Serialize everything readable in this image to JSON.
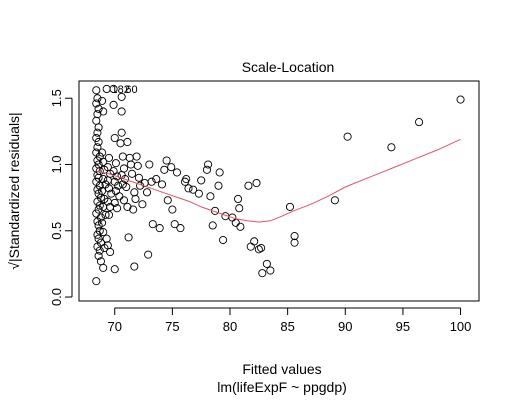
{
  "chart_data": {
    "type": "scatter",
    "title": "Scale-Location",
    "xlabel": "Fitted values",
    "subtitle": "lm(lifeExpF ~ ppgdp)",
    "ylabel": "√|Standardized residuals|",
    "xlim": [
      66.9,
      101.6
    ],
    "ylim": [
      -0.03,
      1.63
    ],
    "xticks": [
      70,
      75,
      80,
      85,
      90,
      95,
      100
    ],
    "yticks": [
      0.0,
      0.5,
      1.0,
      1.5
    ],
    "xtick_labels": [
      "70",
      "75",
      "80",
      "85",
      "90",
      "95",
      "100"
    ],
    "ytick_labels": [
      "0.0",
      "0.5",
      "1.0",
      "1.5"
    ],
    "grid": false,
    "legend": "none",
    "series": [
      {
        "kind": "points",
        "color": "#000000",
        "points": [
          [
            68.4,
            1.56
          ],
          [
            68.5,
            1.5
          ],
          [
            68.4,
            1.46
          ],
          [
            68.6,
            1.42
          ],
          [
            68.5,
            1.38
          ],
          [
            68.4,
            1.33
          ],
          [
            68.6,
            1.28
          ],
          [
            68.5,
            1.24
          ],
          [
            68.4,
            1.2
          ],
          [
            68.6,
            1.17
          ],
          [
            68.5,
            1.13
          ],
          [
            68.4,
            1.09
          ],
          [
            68.7,
            1.06
          ],
          [
            68.5,
            1.03
          ],
          [
            68.6,
            1.0
          ],
          [
            68.4,
            0.97
          ],
          [
            68.7,
            0.95
          ],
          [
            68.5,
            0.92
          ],
          [
            68.6,
            0.9
          ],
          [
            68.4,
            0.87
          ],
          [
            68.7,
            0.84
          ],
          [
            68.5,
            0.81
          ],
          [
            68.6,
            0.78
          ],
          [
            68.8,
            0.75
          ],
          [
            68.5,
            0.72
          ],
          [
            68.7,
            0.69
          ],
          [
            68.6,
            0.66
          ],
          [
            68.4,
            0.63
          ],
          [
            68.8,
            0.6
          ],
          [
            68.5,
            0.57
          ],
          [
            68.6,
            0.54
          ],
          [
            68.7,
            0.5
          ],
          [
            68.5,
            0.47
          ],
          [
            68.6,
            0.44
          ],
          [
            68.8,
            0.41
          ],
          [
            68.5,
            0.38
          ],
          [
            68.7,
            0.35
          ],
          [
            68.6,
            0.31
          ],
          [
            68.8,
            0.27
          ],
          [
            68.4,
            0.12
          ],
          [
            68.9,
            1.48
          ],
          [
            69.0,
            1.4
          ],
          [
            68.9,
            1.09
          ],
          [
            69.0,
            1.02
          ],
          [
            69.1,
            0.96
          ],
          [
            69.0,
            0.89
          ],
          [
            69.2,
            0.85
          ],
          [
            68.9,
            0.8
          ],
          [
            69.1,
            0.74
          ],
          [
            69.0,
            0.68
          ],
          [
            69.2,
            0.62
          ],
          [
            68.9,
            0.56
          ],
          [
            69.0,
            0.49
          ],
          [
            69.3,
            0.44
          ],
          [
            69.1,
            0.37
          ],
          [
            69.0,
            0.22
          ],
          [
            69.3,
            1.57
          ],
          [
            69.5,
            1.05
          ],
          [
            69.4,
            0.98
          ],
          [
            69.6,
            0.93
          ],
          [
            69.4,
            0.88
          ],
          [
            69.5,
            0.82
          ],
          [
            69.7,
            0.78
          ],
          [
            69.4,
            0.72
          ],
          [
            69.6,
            0.68
          ],
          [
            69.5,
            0.62
          ],
          [
            69.4,
            0.39
          ],
          [
            69.6,
            0.34
          ],
          [
            69.9,
            1.57
          ],
          [
            69.9,
            1.45
          ],
          [
            70.0,
            1.2
          ],
          [
            70.1,
            1.01
          ],
          [
            69.9,
            0.95
          ],
          [
            70.2,
            0.91
          ],
          [
            70.0,
            0.87
          ],
          [
            70.3,
            0.84
          ],
          [
            70.1,
            0.8
          ],
          [
            70.4,
            0.76
          ],
          [
            70.0,
            0.71
          ],
          [
            70.2,
            0.67
          ],
          [
            70.0,
            0.21
          ],
          [
            70.6,
            1.51
          ],
          [
            70.6,
            1.4
          ],
          [
            70.6,
            1.24
          ],
          [
            70.5,
            1.16
          ],
          [
            70.7,
            1.06
          ],
          [
            70.8,
            0.97
          ],
          [
            70.6,
            0.92
          ],
          [
            70.9,
            0.89
          ],
          [
            70.7,
            0.85
          ],
          [
            71.0,
            0.83
          ],
          [
            70.8,
            0.73
          ],
          [
            71.1,
            0.68
          ],
          [
            71.1,
            1.17
          ],
          [
            71.3,
            1.05
          ],
          [
            71.4,
            1.0
          ],
          [
            71.2,
            0.45
          ],
          [
            71.5,
            0.93
          ],
          [
            71.7,
            0.79
          ],
          [
            71.8,
            0.74
          ],
          [
            71.6,
            0.66
          ],
          [
            71.7,
            0.23
          ],
          [
            71.9,
            1.06
          ],
          [
            72.0,
            0.99
          ],
          [
            72.1,
            0.9
          ],
          [
            72.2,
            0.84
          ],
          [
            72.4,
            0.7
          ],
          [
            72.6,
            0.86
          ],
          [
            72.8,
            0.79
          ],
          [
            72.9,
            0.32
          ],
          [
            73.0,
            1.0
          ],
          [
            73.2,
            0.87
          ],
          [
            73.3,
            0.55
          ],
          [
            73.6,
            0.89
          ],
          [
            73.9,
            0.52
          ],
          [
            74.1,
            0.85
          ],
          [
            74.3,
            0.96
          ],
          [
            74.5,
            1.03
          ],
          [
            74.6,
            0.73
          ],
          [
            74.9,
            0.98
          ],
          [
            75.0,
            0.66
          ],
          [
            75.2,
            0.55
          ],
          [
            75.4,
            0.94
          ],
          [
            75.7,
            0.52
          ],
          [
            76.1,
            0.87
          ],
          [
            76.2,
            0.89
          ],
          [
            76.4,
            0.82
          ],
          [
            76.8,
            0.81
          ],
          [
            77.3,
            0.78
          ],
          [
            77.5,
            0.88
          ],
          [
            78.0,
            0.96
          ],
          [
            78.1,
            1.0
          ],
          [
            78.3,
            0.76
          ],
          [
            78.5,
            0.54
          ],
          [
            78.7,
            0.65
          ],
          [
            79.0,
            0.84
          ],
          [
            79.1,
            0.94
          ],
          [
            79.4,
            0.43
          ],
          [
            79.6,
            0.61
          ],
          [
            80.2,
            0.6
          ],
          [
            80.5,
            0.56
          ],
          [
            80.7,
            0.74
          ],
          [
            80.8,
            0.67
          ],
          [
            80.9,
            0.53
          ],
          [
            81.6,
            0.84
          ],
          [
            81.8,
            0.38
          ],
          [
            82.1,
            0.42
          ],
          [
            82.3,
            0.86
          ],
          [
            82.5,
            0.36
          ],
          [
            82.7,
            0.37
          ],
          [
            82.8,
            0.18
          ],
          [
            83.2,
            0.25
          ],
          [
            83.5,
            0.2
          ],
          [
            85.2,
            0.68
          ],
          [
            85.6,
            0.41
          ],
          [
            85.6,
            0.46
          ],
          [
            89.1,
            0.73
          ],
          [
            90.2,
            1.21
          ],
          [
            94.0,
            1.13
          ],
          [
            96.4,
            1.32
          ],
          [
            100.0,
            1.49
          ]
        ]
      },
      {
        "kind": "smooth",
        "color": "#DF536B",
        "points": [
          [
            68.4,
            0.95
          ],
          [
            69.5,
            0.93
          ],
          [
            70.5,
            0.9
          ],
          [
            71.5,
            0.87
          ],
          [
            72.5,
            0.84
          ],
          [
            73.5,
            0.81
          ],
          [
            74.5,
            0.78
          ],
          [
            75.5,
            0.75
          ],
          [
            76.5,
            0.72
          ],
          [
            77.5,
            0.68
          ],
          [
            78.5,
            0.65
          ],
          [
            79.5,
            0.62
          ],
          [
            80.5,
            0.59
          ],
          [
            81.5,
            0.575
          ],
          [
            82.5,
            0.565
          ],
          [
            83.5,
            0.575
          ],
          [
            84.5,
            0.61
          ],
          [
            85.5,
            0.65
          ],
          [
            87.0,
            0.7
          ],
          [
            88.5,
            0.76
          ],
          [
            90.0,
            0.83
          ],
          [
            92.0,
            0.9
          ],
          [
            94.0,
            0.97
          ],
          [
            96.0,
            1.04
          ],
          [
            98.0,
            1.11
          ],
          [
            100.0,
            1.19
          ]
        ]
      }
    ],
    "annotations": [
      {
        "text": "182",
        "x": 69.2,
        "y": 1.57
      },
      {
        "text": "60",
        "x": 70.4,
        "y": 1.57
      }
    ]
  }
}
